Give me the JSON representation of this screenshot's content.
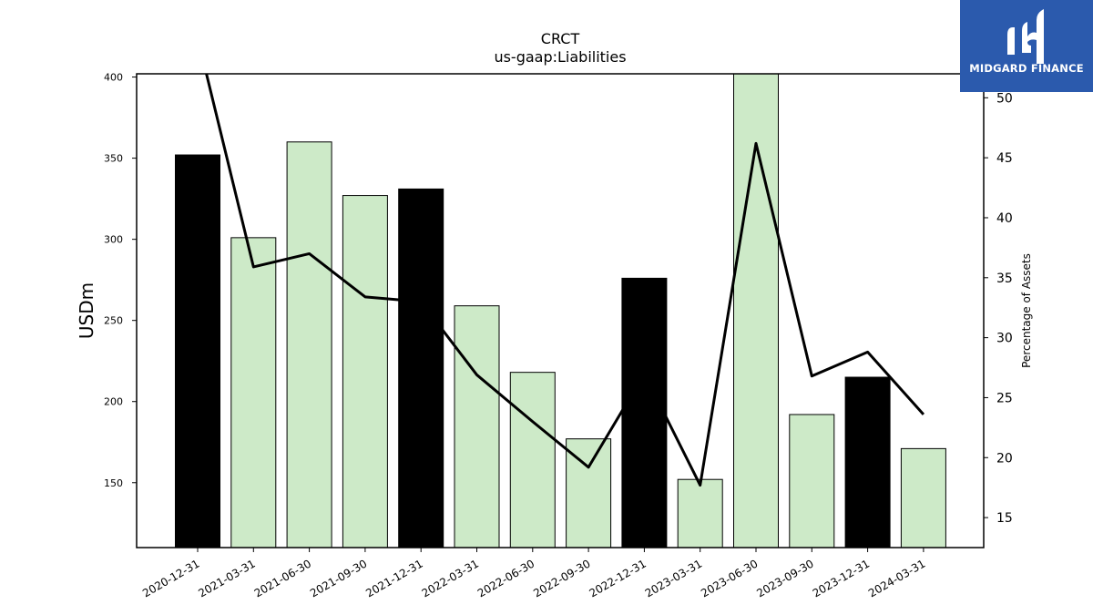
{
  "brand": {
    "name": "MIDGARD FINANCE",
    "bg_color": "#2b5aad"
  },
  "chart_data": {
    "type": "bar",
    "title": "CRCT",
    "subtitle": "us-gaap:Liabilities",
    "ylabel": "USDm",
    "y2label": "Percentage of Assets",
    "ylim": [
      110,
      402
    ],
    "y2lim": [
      12.5,
      52
    ],
    "yticks": [
      150,
      200,
      250,
      300,
      350,
      400
    ],
    "y2ticks": [
      15,
      20,
      25,
      30,
      35,
      40,
      45,
      50
    ],
    "categories": [
      "2020-12-31",
      "2021-03-31",
      "2021-06-30",
      "2021-09-30",
      "2021-12-31",
      "2022-03-31",
      "2022-06-30",
      "2022-09-30",
      "2022-12-31",
      "2023-03-31",
      "2023-06-30",
      "2023-09-30",
      "2023-12-31",
      "2024-03-31"
    ],
    "series": [
      {
        "kind": "bar",
        "values": [
          352,
          301,
          360,
          327,
          331,
          259,
          218,
          177,
          276,
          152,
          402,
          192,
          215,
          171
        ],
        "colors": [
          "#000000",
          "#cdeac8",
          "#cdeac8",
          "#cdeac8",
          "#000000",
          "#cdeac8",
          "#cdeac8",
          "#cdeac8",
          "#000000",
          "#cdeac8",
          "#cdeac8",
          "#cdeac8",
          "#000000",
          "#cdeac8"
        ]
      },
      {
        "kind": "line",
        "axis": "right",
        "color": "#000000",
        "values": [
          55.0,
          35.9,
          37.0,
          33.4,
          33.0,
          26.9,
          23.0,
          19.2,
          27.0,
          17.7,
          46.2,
          26.8,
          28.8,
          23.6
        ]
      }
    ],
    "grid": false
  }
}
